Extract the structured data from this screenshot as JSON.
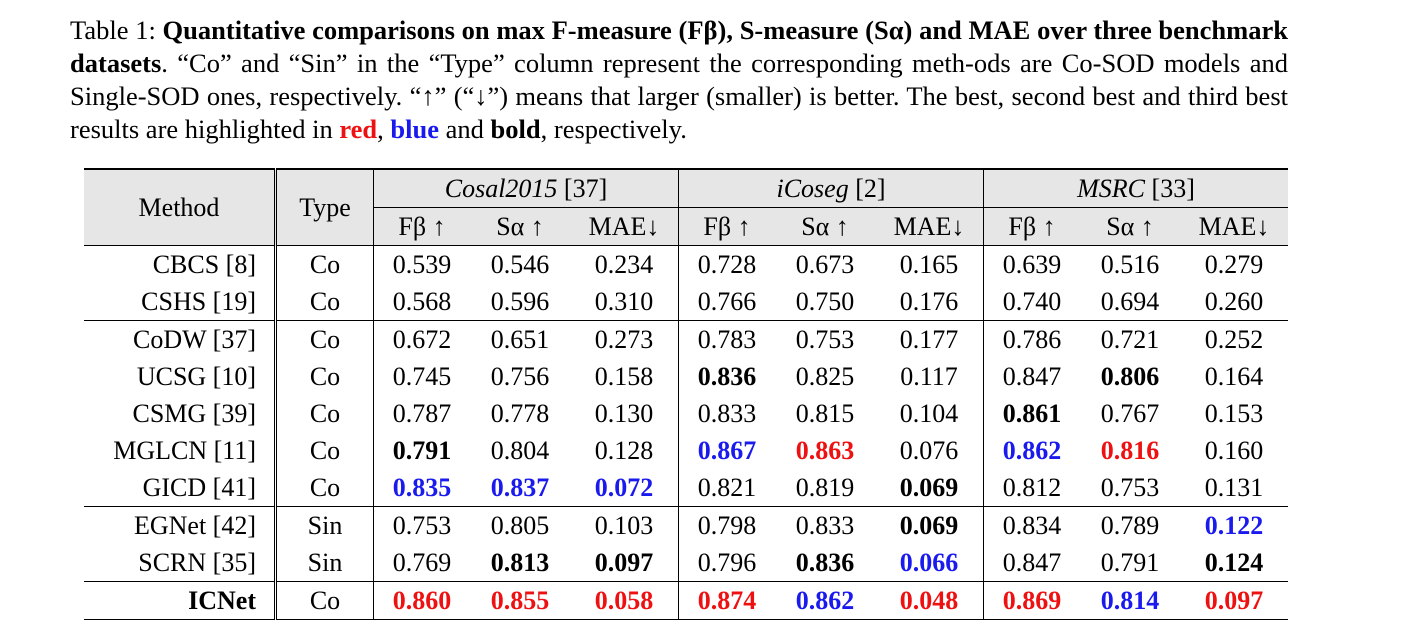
{
  "caption": {
    "label": "Table 1:",
    "bold_intro": "Quantitative comparisons on max F-measure (Fβ), S-measure (Sα) and MAE over three benchmark datasets",
    "text1": ". “Co” and “Sin” in the “Type” column represent the corresponding meth-ods are Co-SOD models and Single-SOD ones, respectively. “↑” (“↓”) means that larger (smaller) is better. The best, second best and third best results are highlighted in ",
    "red_word": "red",
    "comma": ", ",
    "blue_word": "blue",
    "and_text": " and ",
    "bold_word": "bold",
    "end_text": ", respectively."
  },
  "table": {
    "col_method": "Method",
    "col_type": "Type",
    "datasets": [
      {
        "name": "Cosal2015",
        "ref": " [37]"
      },
      {
        "name": "iCoseg",
        "ref": " [2]"
      },
      {
        "name": "MSRC",
        "ref": " [33]"
      }
    ],
    "metrics": [
      "Fβ ↑",
      "Sα ↑",
      "MAE↓"
    ],
    "rows": [
      {
        "method": "CBCS  [8]",
        "type": "Co",
        "values": [
          "0.539",
          "0.546",
          "0.234",
          "0.728",
          "0.673",
          "0.165",
          "0.639",
          "0.516",
          "0.279"
        ],
        "marks": [
          "",
          "",
          "",
          "",
          "",
          "",
          "",
          "",
          ""
        ]
      },
      {
        "method": "CSHS [19]",
        "type": "Co",
        "values": [
          "0.568",
          "0.596",
          "0.310",
          "0.766",
          "0.750",
          "0.176",
          "0.740",
          "0.694",
          "0.260"
        ],
        "marks": [
          "",
          "",
          "",
          "",
          "",
          "",
          "",
          "",
          ""
        ]
      },
      {
        "method": "CoDW [37]",
        "type": "Co",
        "values": [
          "0.672",
          "0.651",
          "0.273",
          "0.783",
          "0.753",
          "0.177",
          "0.786",
          "0.721",
          "0.252"
        ],
        "marks": [
          "",
          "",
          "",
          "",
          "",
          "",
          "",
          "",
          ""
        ]
      },
      {
        "method": "UCSG [10]",
        "type": "Co",
        "values": [
          "0.745",
          "0.756",
          "0.158",
          "0.836",
          "0.825",
          "0.117",
          "0.847",
          "0.806",
          "0.164"
        ],
        "marks": [
          "",
          "",
          "",
          "k",
          "",
          "",
          "",
          "k",
          ""
        ]
      },
      {
        "method": "CSMG [39]",
        "type": "Co",
        "values": [
          "0.787",
          "0.778",
          "0.130",
          "0.833",
          "0.815",
          "0.104",
          "0.861",
          "0.767",
          "0.153"
        ],
        "marks": [
          "",
          "",
          "",
          "",
          "",
          "",
          "k",
          "",
          ""
        ]
      },
      {
        "method": "MGLCN [11]",
        "type": "Co",
        "values": [
          "0.791",
          "0.804",
          "0.128",
          "0.867",
          "0.863",
          "0.076",
          "0.862",
          "0.816",
          "0.160"
        ],
        "marks": [
          "k",
          "",
          "",
          "b",
          "r",
          "",
          "b",
          "r",
          ""
        ]
      },
      {
        "method": "GICD [41]",
        "type": "Co",
        "values": [
          "0.835",
          "0.837",
          "0.072",
          "0.821",
          "0.819",
          "0.069",
          "0.812",
          "0.753",
          "0.131"
        ],
        "marks": [
          "b",
          "b",
          "b",
          "",
          "",
          "k",
          "",
          "",
          ""
        ]
      },
      {
        "method": "EGNet [42]",
        "type": "Sin",
        "values": [
          "0.753",
          "0.805",
          "0.103",
          "0.798",
          "0.833",
          "0.069",
          "0.834",
          "0.789",
          "0.122"
        ],
        "marks": [
          "",
          "",
          "",
          "",
          "",
          "k",
          "",
          "",
          "b"
        ]
      },
      {
        "method": "SCRN [35]",
        "type": "Sin",
        "values": [
          "0.769",
          "0.813",
          "0.097",
          "0.796",
          "0.836",
          "0.066",
          "0.847",
          "0.791",
          "0.124"
        ],
        "marks": [
          "",
          "k",
          "k",
          "",
          "k",
          "b",
          "",
          "",
          "k"
        ]
      },
      {
        "method": "ICNet",
        "type": "Co",
        "values": [
          "0.860",
          "0.855",
          "0.058",
          "0.874",
          "0.862",
          "0.048",
          "0.869",
          "0.814",
          "0.097"
        ],
        "marks": [
          "r",
          "r",
          "r",
          "r",
          "b",
          "r",
          "r",
          "b",
          "r"
        ]
      }
    ]
  }
}
